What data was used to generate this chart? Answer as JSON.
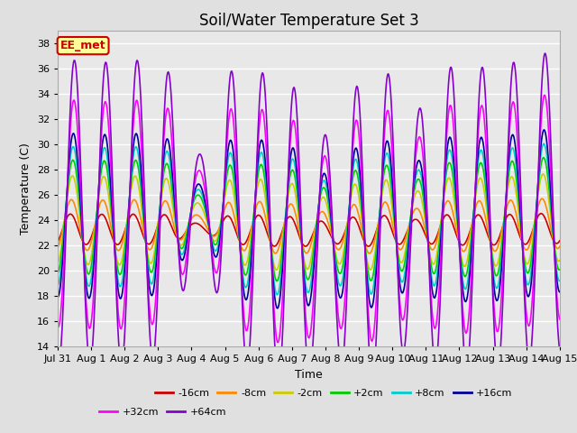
{
  "title": "Soil/Water Temperature Set 3",
  "xlabel": "Time",
  "ylabel": "Temperature (C)",
  "ylim": [
    14,
    39
  ],
  "yticks": [
    14,
    16,
    18,
    20,
    22,
    24,
    26,
    28,
    30,
    32,
    34,
    36,
    38
  ],
  "fig_bg_color": "#e0e0e0",
  "plot_bg_color": "#e8e8e8",
  "series": [
    {
      "label": "-16cm",
      "color": "#cc0000",
      "lw": 1.2,
      "amp": 1.2,
      "phase": 0.6,
      "mean": 23.2
    },
    {
      "label": "-8cm",
      "color": "#ff8800",
      "lw": 1.2,
      "amp": 2.0,
      "phase": 0.4,
      "mean": 23.5
    },
    {
      "label": "-2cm",
      "color": "#cccc00",
      "lw": 1.2,
      "amp": 3.5,
      "phase": 0.2,
      "mean": 23.8
    },
    {
      "label": "+2cm",
      "color": "#00cc00",
      "lw": 1.2,
      "amp": 4.5,
      "phase": 0.1,
      "mean": 24.0
    },
    {
      "label": "+8cm",
      "color": "#00cccc",
      "lw": 1.2,
      "amp": 5.5,
      "phase": 0.05,
      "mean": 24.0
    },
    {
      "label": "+16cm",
      "color": "#000099",
      "lw": 1.2,
      "amp": 6.5,
      "phase": 0.0,
      "mean": 24.0
    },
    {
      "label": "+32cm",
      "color": "#ff00ff",
      "lw": 1.2,
      "amp": 9.0,
      "phase": -0.1,
      "mean": 24.0
    },
    {
      "label": "+64cm",
      "color": "#8800cc",
      "lw": 1.2,
      "amp": 12.0,
      "phase": -0.2,
      "mean": 24.0
    }
  ],
  "annotation": {
    "text": "EE_met",
    "fontsize": 9,
    "color": "#cc0000",
    "bg": "#ffff99",
    "border": "#cc0000"
  },
  "xtick_labels": [
    "Jul 31",
    "Aug 1",
    "Aug 2",
    "Aug 3",
    "Aug 4",
    "Aug 5",
    "Aug 6",
    "Aug 7",
    "Aug 8",
    "Aug 9",
    "Aug 10",
    "Aug 11",
    "Aug 12",
    "Aug 13",
    "Aug 14",
    "Aug 15"
  ],
  "n_days": 16,
  "pts_per_day": 48
}
